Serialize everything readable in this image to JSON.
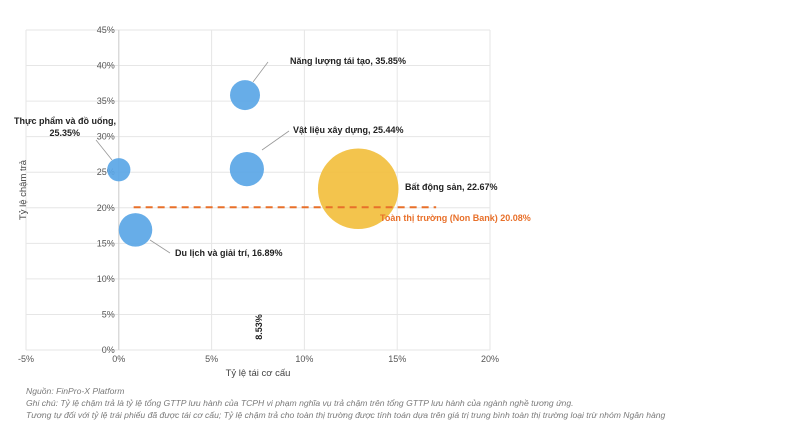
{
  "chart_data": {
    "type": "scatter",
    "xlabel": "Tỷ lệ tái cơ cấu",
    "ylabel": "Tỷ lệ chậm trả",
    "xlim": [
      -5,
      20
    ],
    "ylim": [
      0,
      45
    ],
    "x_ticks": [
      "-5%",
      "0%",
      "5%",
      "10%",
      "15%",
      "20%"
    ],
    "y_ticks": [
      "0%",
      "5%",
      "10%",
      "15%",
      "20%",
      "25%",
      "30%",
      "35%",
      "40%",
      "45%"
    ],
    "grid": true,
    "points": [
      {
        "label": "Năng lượng tái tạo, 35.85%",
        "x": 6.8,
        "y": 35.85,
        "size": 1.0,
        "color": "#5aa6e6"
      },
      {
        "label": "Vật liệu xây dựng, 25.44%",
        "x": 6.9,
        "y": 25.44,
        "size": 1.3,
        "color": "#5aa6e6"
      },
      {
        "label": "Thực phẩm và đồ uống, 25.35%",
        "x": 0.0,
        "y": 25.35,
        "size": 0.6,
        "color": "#5aa6e6"
      },
      {
        "label": "Bất động sản, 22.67%",
        "x": 12.9,
        "y": 22.67,
        "size": 3.0,
        "color": "#f2bf3e"
      },
      {
        "label": "Du lịch và giải trí, 16.89%",
        "x": 0.9,
        "y": 16.89,
        "size": 1.25,
        "color": "#5aa6e6"
      }
    ],
    "reference_line": {
      "label": "Toàn thị trường (Non Bank) 20.08%",
      "y": 20.08,
      "color": "#e8702a"
    },
    "vertical_annotation": "8.53%"
  },
  "footer": {
    "source": "Nguồn: FinPro-X Platform",
    "note1": "Ghi chú: Tỷ lệ chậm trả là tỷ lệ tổng GTTP lưu hành của TCPH vi phạm nghĩa vụ trả chậm trên tổng GTTP lưu hành của ngành nghề tương ứng.",
    "note2": "Tương tự đối với tỷ lệ trái phiếu đã được tái cơ cấu; Tỷ lệ chậm trả cho toàn thị trường được tính toán dựa trên giá trị trung bình toàn thị trường loại trừ nhóm Ngân hàng"
  }
}
